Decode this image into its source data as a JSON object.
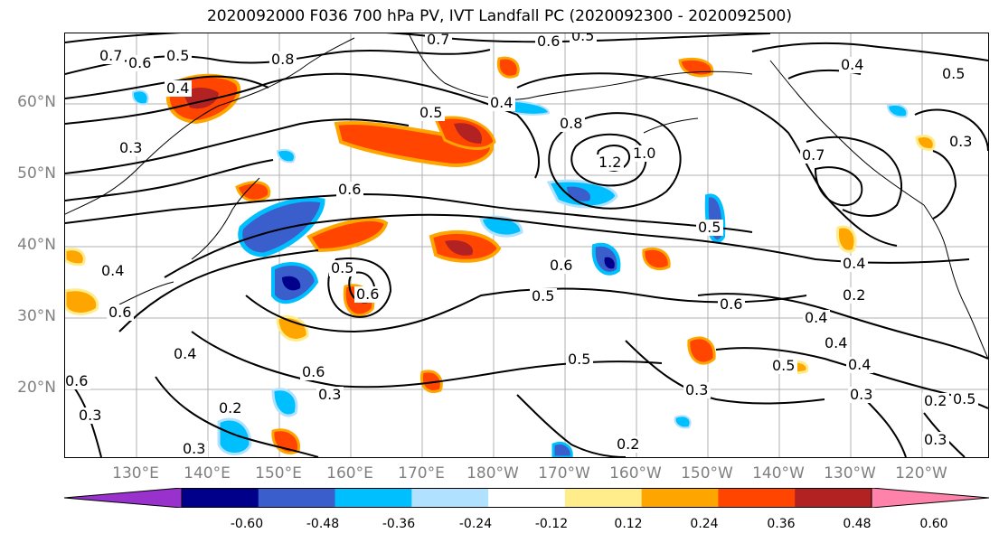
{
  "title": "2020092000 F036 700 hPa PV, IVT Landfall PC (2020092300 - 2020092500)",
  "lat_labels": [
    "60°N",
    "50°N",
    "40°N",
    "30°N",
    "20°N"
  ],
  "lon_labels": [
    "130°E",
    "140°E",
    "150°E",
    "160°E",
    "170°E",
    "180°W",
    "170°W",
    "160°W",
    "150°W",
    "140°W",
    "130°W",
    "120°W"
  ],
  "colorbar": {
    "colors": [
      "#9932cc",
      "#00008b",
      "#3a5fcd",
      "#00bfff",
      "#b0e2ff",
      "#ffffff",
      "#ffec8b",
      "#ffa500",
      "#ff4500",
      "#b22222",
      "#ff82ab"
    ],
    "tick_labels": [
      "-0.60",
      "-0.48",
      "-0.36",
      "-0.24",
      "-0.12",
      "0.12",
      "0.24",
      "0.36",
      "0.48",
      "0.60"
    ]
  },
  "contour_labels": [
    "0.7",
    "0.6",
    "0.5",
    "0.4",
    "0.3",
    "0.8",
    "0.7",
    "0.6",
    "0.5",
    "0.4",
    "0.5",
    "0.8",
    "1.2",
    "1.0",
    "0.4",
    "0.5",
    "0.7",
    "0.3",
    "0.6",
    "0.6",
    "0.5",
    "0.6",
    "0.6",
    "0.5",
    "0.4",
    "0.6",
    "0.4",
    "0.4",
    "0.5",
    "0.6",
    "0.3",
    "0.3",
    "0.5",
    "0.6",
    "0.3",
    "0.2",
    "0.4",
    "0.3",
    "0.2",
    "0.5",
    "0.3",
    "0.2",
    "0.2",
    "0.4",
    "0.5",
    "0.4",
    "0.3"
  ]
}
